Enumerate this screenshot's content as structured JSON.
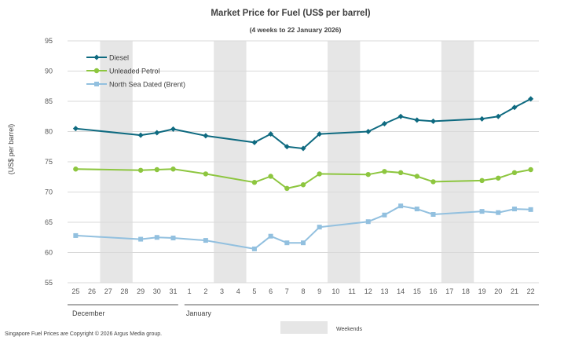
{
  "chart_data": {
    "type": "line",
    "title": "Market Price for Fuel (US$ per barrel)",
    "subtitle": "(4 weeks to 22 January 2026)",
    "ylabel": "(US$ per barrel)",
    "xlabel": "",
    "ylim": [
      55,
      95
    ],
    "yticks": [
      55,
      60,
      65,
      70,
      75,
      80,
      85,
      90,
      95
    ],
    "categories": [
      "25",
      "26",
      "27",
      "28",
      "29",
      "30",
      "31",
      "1",
      "2",
      "3",
      "4",
      "5",
      "6",
      "7",
      "8",
      "9",
      "10",
      "11",
      "12",
      "13",
      "14",
      "15",
      "16",
      "17",
      "18",
      "19",
      "20",
      "21",
      "22"
    ],
    "month_labels": [
      {
        "label": "December",
        "start_index": 0
      },
      {
        "label": "January",
        "start_index": 7
      }
    ],
    "weekend_bands": [
      [
        2,
        3
      ],
      [
        9,
        10
      ],
      [
        16,
        17
      ],
      [
        23,
        24
      ]
    ],
    "weekend_label": "Weekends",
    "series": [
      {
        "name": "Diesel",
        "color": "#0e6a80",
        "marker": "diamond",
        "values": [
          80.5,
          null,
          null,
          null,
          79.4,
          79.8,
          80.4,
          null,
          79.3,
          null,
          null,
          78.2,
          79.6,
          77.5,
          77.2,
          79.6,
          null,
          null,
          80.0,
          81.3,
          82.5,
          81.9,
          81.7,
          null,
          null,
          82.1,
          82.5,
          84.0,
          85.4
        ]
      },
      {
        "name": "Unleaded Petrol",
        "color": "#8dc63f",
        "marker": "circle",
        "values": [
          73.8,
          null,
          null,
          null,
          73.6,
          73.7,
          73.8,
          null,
          73.0,
          null,
          null,
          71.6,
          72.6,
          70.6,
          71.2,
          73.0,
          null,
          null,
          72.9,
          73.4,
          73.2,
          72.6,
          71.7,
          null,
          null,
          71.9,
          72.3,
          73.2,
          73.7
        ]
      },
      {
        "name": "North Sea Dated (Brent)",
        "color": "#92c0df",
        "marker": "square",
        "values": [
          62.8,
          null,
          null,
          null,
          62.2,
          62.5,
          62.4,
          null,
          62.0,
          null,
          null,
          60.6,
          62.7,
          61.6,
          61.6,
          64.2,
          null,
          null,
          65.1,
          66.2,
          67.7,
          67.2,
          66.3,
          null,
          null,
          66.8,
          66.6,
          67.2,
          67.1
        ]
      }
    ],
    "legend_position": "top-left",
    "footer": "Singapore  Fuel Prices  are Copyright  © 2026  Argus  Media group."
  }
}
